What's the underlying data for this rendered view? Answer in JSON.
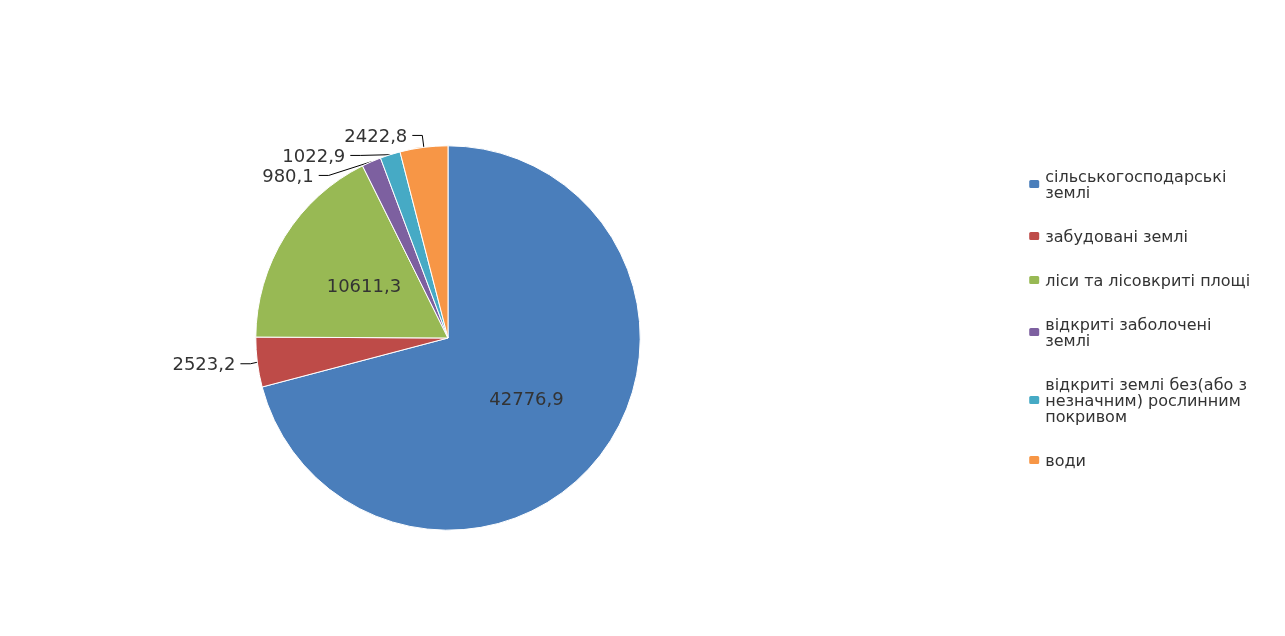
{
  "chart_data": {
    "type": "pie",
    "categories": [
      "сільськогосподарські землі",
      "забудовані землі",
      "ліси та лісовкриті площі",
      "відкриті заболочені землі",
      "відкриті землі без(або з незначним) рослинним покривом",
      "води"
    ],
    "values": [
      42776.9,
      2523.2,
      10611.3,
      980.1,
      1022.9,
      2422.8
    ],
    "value_labels": [
      "42776,9",
      "2523,2",
      "10611,3",
      "980,1",
      "1022,9",
      "2422,8"
    ],
    "colors": [
      "#4a7ebb",
      "#be4b48",
      "#98b954",
      "#7d60a0",
      "#46aac5",
      "#f79646"
    ],
    "legend": "right"
  }
}
